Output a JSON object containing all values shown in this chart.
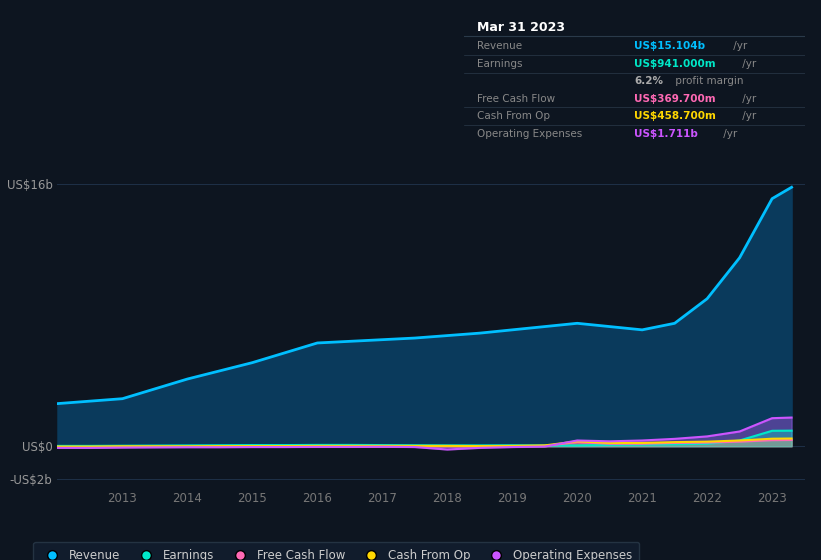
{
  "background_color": "#0d1520",
  "plot_bg_color": "#0d1520",
  "years": [
    2012.0,
    2012.5,
    2013,
    2013.5,
    2014,
    2014.5,
    2015,
    2015.5,
    2016,
    2016.5,
    2017,
    2017.5,
    2018,
    2018.5,
    2019,
    2019.5,
    2020,
    2020.5,
    2021,
    2021.5,
    2022,
    2022.5,
    2023,
    2023.3
  ],
  "revenue": [
    2.6,
    2.75,
    2.9,
    3.5,
    4.1,
    4.6,
    5.1,
    5.7,
    6.3,
    6.4,
    6.5,
    6.6,
    6.75,
    6.9,
    7.1,
    7.3,
    7.5,
    7.3,
    7.1,
    7.5,
    9.0,
    11.5,
    15.104,
    15.8
  ],
  "earnings": [
    0.02,
    0.02,
    0.03,
    0.04,
    0.05,
    0.06,
    0.07,
    0.07,
    0.08,
    0.08,
    0.07,
    0.06,
    0.05,
    0.05,
    0.06,
    0.05,
    0.05,
    0.08,
    0.1,
    0.12,
    0.15,
    0.35,
    0.941,
    0.95
  ],
  "free_cash_flow": [
    -0.05,
    -0.06,
    -0.05,
    -0.04,
    -0.04,
    -0.04,
    -0.03,
    -0.03,
    -0.02,
    -0.02,
    -0.02,
    -0.01,
    0.0,
    -0.02,
    -0.01,
    0.02,
    0.25,
    0.15,
    0.15,
    0.2,
    0.22,
    0.28,
    0.3697,
    0.38
  ],
  "cash_from_op": [
    -0.02,
    -0.02,
    0.0,
    0.0,
    0.0,
    0.01,
    0.01,
    0.01,
    0.02,
    0.02,
    0.02,
    0.02,
    0.02,
    0.01,
    0.02,
    0.05,
    0.3,
    0.2,
    0.2,
    0.25,
    0.28,
    0.35,
    0.4587,
    0.47
  ],
  "operating_expenses": [
    -0.1,
    -0.1,
    -0.08,
    -0.07,
    -0.06,
    -0.06,
    -0.05,
    -0.05,
    -0.04,
    -0.04,
    -0.03,
    -0.05,
    -0.2,
    -0.1,
    -0.05,
    -0.02,
    0.35,
    0.3,
    0.35,
    0.45,
    0.6,
    0.9,
    1.711,
    1.75
  ],
  "revenue_color": "#00bfff",
  "earnings_color": "#00e8c8",
  "fcf_color": "#ff69b4",
  "cashop_color": "#ffd700",
  "opex_color": "#cc55ff",
  "fill_revenue_color": "#0a3a5c",
  "ylim": [
    -2.5,
    18
  ],
  "xlim": [
    2012.0,
    2023.5
  ],
  "xticks": [
    2013,
    2014,
    2015,
    2016,
    2017,
    2018,
    2019,
    2020,
    2021,
    2022,
    2023
  ],
  "legend_items": [
    "Revenue",
    "Earnings",
    "Free Cash Flow",
    "Cash From Op",
    "Operating Expenses"
  ],
  "legend_colors": [
    "#00bfff",
    "#00e8c8",
    "#ff69b4",
    "#ffd700",
    "#cc55ff"
  ],
  "tooltip_title": "Mar 31 2023",
  "tooltip_rows": [
    {
      "label": "Revenue",
      "value": "US$15.104b",
      "unit": " /yr",
      "color": "#00bfff"
    },
    {
      "label": "Earnings",
      "value": "US$941.000m",
      "unit": " /yr",
      "color": "#00e8c8"
    },
    {
      "label": "",
      "value": "6.2%",
      "unit": " profit margin",
      "color": "#aaaaaa"
    },
    {
      "label": "Free Cash Flow",
      "value": "US$369.700m",
      "unit": " /yr",
      "color": "#ff69b4"
    },
    {
      "label": "Cash From Op",
      "value": "US$458.700m",
      "unit": " /yr",
      "color": "#ffd700"
    },
    {
      "label": "Operating Expenses",
      "value": "US$1.711b",
      "unit": " /yr",
      "color": "#cc55ff"
    }
  ]
}
